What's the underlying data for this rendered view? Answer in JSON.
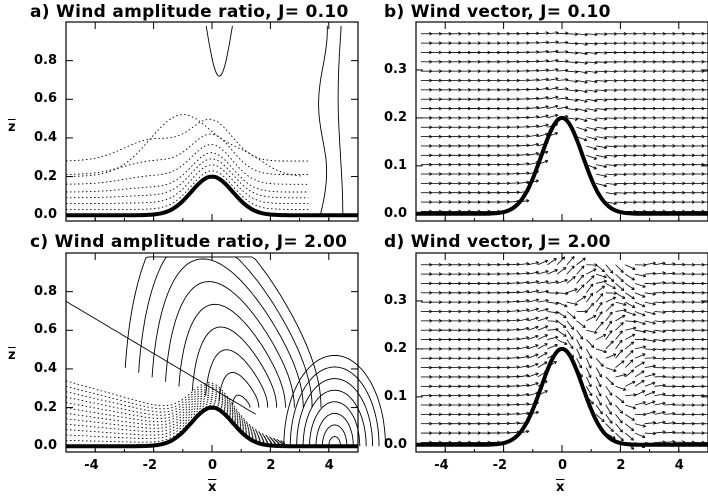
{
  "chart_data": [
    {
      "id": "a",
      "type": "contour",
      "title": "a) Wind amplitude ratio, J= 0.10",
      "xlabel": "x",
      "ylabel": "z",
      "xlim": [
        -5,
        5
      ],
      "ylim": [
        -0.03,
        1.0
      ],
      "xticks": [
        "-4",
        "-2",
        "0",
        "2",
        "4"
      ],
      "yticks": [
        "0.0",
        "0.2",
        "0.4",
        "0.6",
        "0.8"
      ],
      "ytick_values": [
        0.0,
        0.2,
        0.4,
        0.6,
        0.8
      ],
      "terrain": {
        "height": 0.2,
        "width": 1.0
      }
    },
    {
      "id": "b",
      "type": "vector",
      "title": "b) Wind vector, J= 0.10",
      "xlabel": "x",
      "ylabel": "z",
      "xlim": [
        -5,
        5
      ],
      "ylim": [
        -0.015,
        0.4
      ],
      "xticks": [
        "-4",
        "-2",
        "0",
        "2",
        "4"
      ],
      "yticks": [
        "0.0",
        "0.1",
        "0.2",
        "0.3"
      ],
      "ytick_values": [
        0.0,
        0.1,
        0.2,
        0.3
      ],
      "terrain": {
        "height": 0.2,
        "width": 1.0
      }
    },
    {
      "id": "c",
      "type": "contour",
      "title": "c) Wind amplitude ratio, J= 2.00",
      "xlabel": "x",
      "ylabel": "z",
      "xlim": [
        -5,
        5
      ],
      "ylim": [
        -0.03,
        1.0
      ],
      "xticks": [
        "-4",
        "-2",
        "0",
        "2",
        "4"
      ],
      "yticks": [
        "0.0",
        "0.2",
        "0.4",
        "0.6",
        "0.8"
      ],
      "ytick_values": [
        0.0,
        0.2,
        0.4,
        0.6,
        0.8
      ],
      "terrain": {
        "height": 0.2,
        "width": 1.0
      }
    },
    {
      "id": "d",
      "type": "vector",
      "title": "d) Wind vector, J= 2.00",
      "xlabel": "x",
      "ylabel": "z",
      "xlim": [
        -5,
        5
      ],
      "ylim": [
        -0.015,
        0.4
      ],
      "xticks": [
        "-4",
        "-2",
        "0",
        "2",
        "4"
      ],
      "yticks": [
        "0.0",
        "0.1",
        "0.2",
        "0.3"
      ],
      "ytick_values": [
        0.0,
        0.1,
        0.2,
        0.3
      ],
      "terrain": {
        "height": 0.2,
        "width": 1.0
      }
    }
  ],
  "xtick_values": [
    -4,
    -2,
    0,
    2,
    4
  ]
}
